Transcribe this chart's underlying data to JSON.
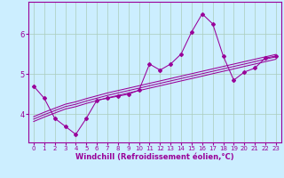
{
  "xlabel": "Windchill (Refroidissement éolien,°C)",
  "bg_color": "#cceeff",
  "line_color": "#990099",
  "grid_color": "#aaccbb",
  "x_data": [
    0,
    1,
    2,
    3,
    4,
    5,
    6,
    7,
    8,
    9,
    10,
    11,
    12,
    13,
    14,
    15,
    16,
    17,
    18,
    19,
    20,
    21,
    22,
    23
  ],
  "y_main": [
    4.7,
    4.4,
    3.9,
    3.7,
    3.5,
    3.9,
    4.35,
    4.4,
    4.45,
    4.5,
    4.6,
    5.25,
    5.1,
    5.25,
    5.5,
    6.05,
    6.5,
    6.25,
    5.45,
    4.85,
    5.05,
    5.15,
    5.4,
    5.45
  ],
  "y_reg1": [
    3.88,
    3.99,
    4.09,
    4.19,
    4.25,
    4.33,
    4.4,
    4.47,
    4.53,
    4.59,
    4.65,
    4.71,
    4.77,
    4.83,
    4.89,
    4.95,
    5.01,
    5.07,
    5.13,
    5.19,
    5.25,
    5.31,
    5.37,
    5.43
  ],
  "y_reg2": [
    3.82,
    3.93,
    4.03,
    4.13,
    4.19,
    4.27,
    4.34,
    4.41,
    4.47,
    4.53,
    4.59,
    4.65,
    4.71,
    4.77,
    4.83,
    4.89,
    4.95,
    5.01,
    5.07,
    5.13,
    5.19,
    5.25,
    5.31,
    5.37
  ],
  "y_reg3": [
    3.94,
    4.05,
    4.15,
    4.25,
    4.31,
    4.39,
    4.46,
    4.53,
    4.59,
    4.65,
    4.71,
    4.77,
    4.83,
    4.89,
    4.95,
    5.01,
    5.07,
    5.13,
    5.19,
    5.25,
    5.31,
    5.37,
    5.43,
    5.49
  ],
  "ylim": [
    3.3,
    6.8
  ],
  "xlim": [
    -0.5,
    23.5
  ],
  "yticks": [
    4,
    5,
    6
  ],
  "xticks": [
    0,
    1,
    2,
    3,
    4,
    5,
    6,
    7,
    8,
    9,
    10,
    11,
    12,
    13,
    14,
    15,
    16,
    17,
    18,
    19,
    20,
    21,
    22,
    23
  ],
  "tick_fontsize": 5.0,
  "xlabel_fontsize": 6.0,
  "marker": "D",
  "marker_size": 2.0,
  "linewidth": 0.75
}
